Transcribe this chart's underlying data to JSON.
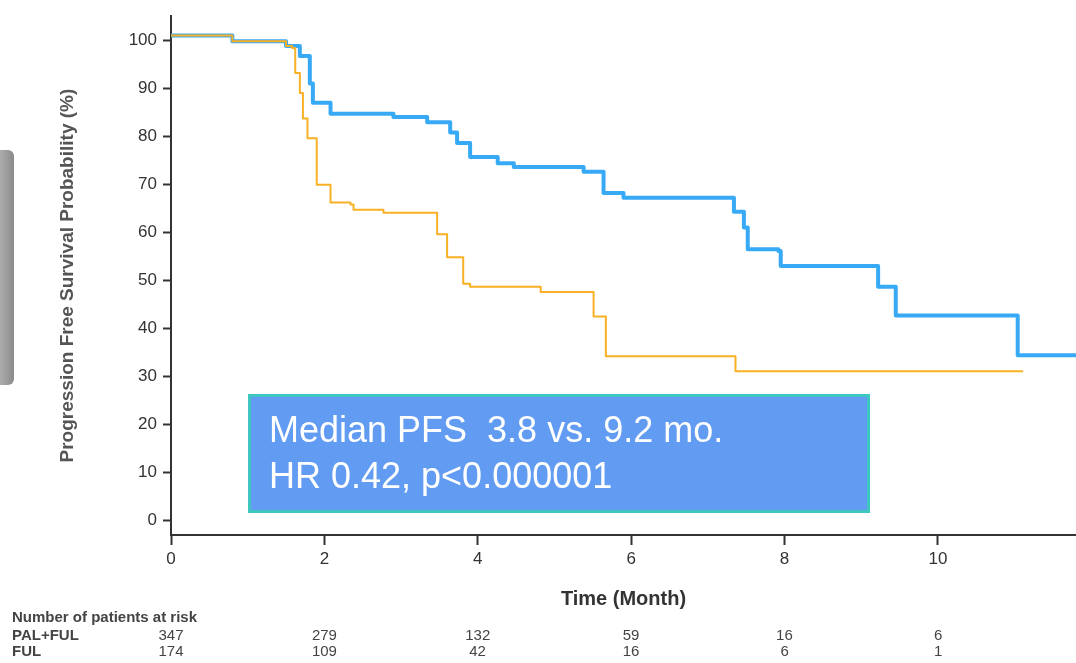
{
  "chart_data": {
    "type": "step",
    "xlabel": "Time (Month)",
    "ylabel": "Progression Free Survival Probability (%)",
    "xlim": [
      0,
      11.8
    ],
    "xticks": [
      0,
      2,
      4,
      6,
      8,
      10
    ],
    "ylim": [
      -3,
      105
    ],
    "yticks": [
      0,
      10,
      20,
      30,
      40,
      50,
      60,
      70,
      80,
      90,
      100
    ],
    "grid": false,
    "legend": false,
    "marker": "none",
    "line_style": "solid",
    "series": [
      {
        "color": "#38aaf5",
        "x": [
          0,
          0.8,
          1.5,
          1.6,
          1.68,
          1.81,
          1.85,
          2.08,
          2.9,
          3.34,
          3.64,
          3.73,
          3.9,
          4.12,
          4.26,
          4.47,
          5.08,
          5.38,
          5.64,
          5.9,
          7.17,
          7.34,
          7.47,
          7.52,
          7.92,
          7.95,
          9.19,
          9.22,
          9.45,
          9.45,
          11.02,
          11.04,
          11.8
        ],
        "values": [
          101,
          99.8,
          98.8,
          98.8,
          96.7,
          91,
          87,
          84.7,
          84,
          82.9,
          80.8,
          78.6,
          75.7,
          75.7,
          74.4,
          73.6,
          73.6,
          72.6,
          68.2,
          67.2,
          67.2,
          64.3,
          61,
          56.5,
          56.1,
          53,
          53,
          48.7,
          48.7,
          42.7,
          42.7,
          34.4,
          34.4
        ]
      },
      {
        "color": "#f8b025",
        "x": [
          0,
          0.8,
          1.5,
          1.58,
          1.62,
          1.68,
          1.72,
          1.78,
          1.9,
          2.08,
          2.34,
          2.38,
          2.77,
          3.29,
          3.47,
          3.6,
          3.81,
          3.9,
          4.78,
          4.82,
          5.31,
          5.51,
          5.67,
          7.34,
          7.36,
          11.11
        ],
        "values": [
          101,
          99.8,
          98.8,
          98.4,
          93.2,
          89,
          83.7,
          79.6,
          69.9,
          66.2,
          65.8,
          64.7,
          64.1,
          64.1,
          59.6,
          54.8,
          49.3,
          48.7,
          48.7,
          47.6,
          47.6,
          42.5,
          34.2,
          34.2,
          31.1,
          31.1
        ]
      }
    ],
    "annotations": [
      "Median PFS  3.8 vs. 9.2 mo.",
      "HR 0.42, p<0.000001",
      "Number of patients at risk",
      "PAL+FUL",
      "347",
      "279",
      "132",
      "59",
      "16",
      "6",
      "FUL",
      "174",
      "109",
      "42",
      "16",
      "6",
      "1"
    ]
  }
}
